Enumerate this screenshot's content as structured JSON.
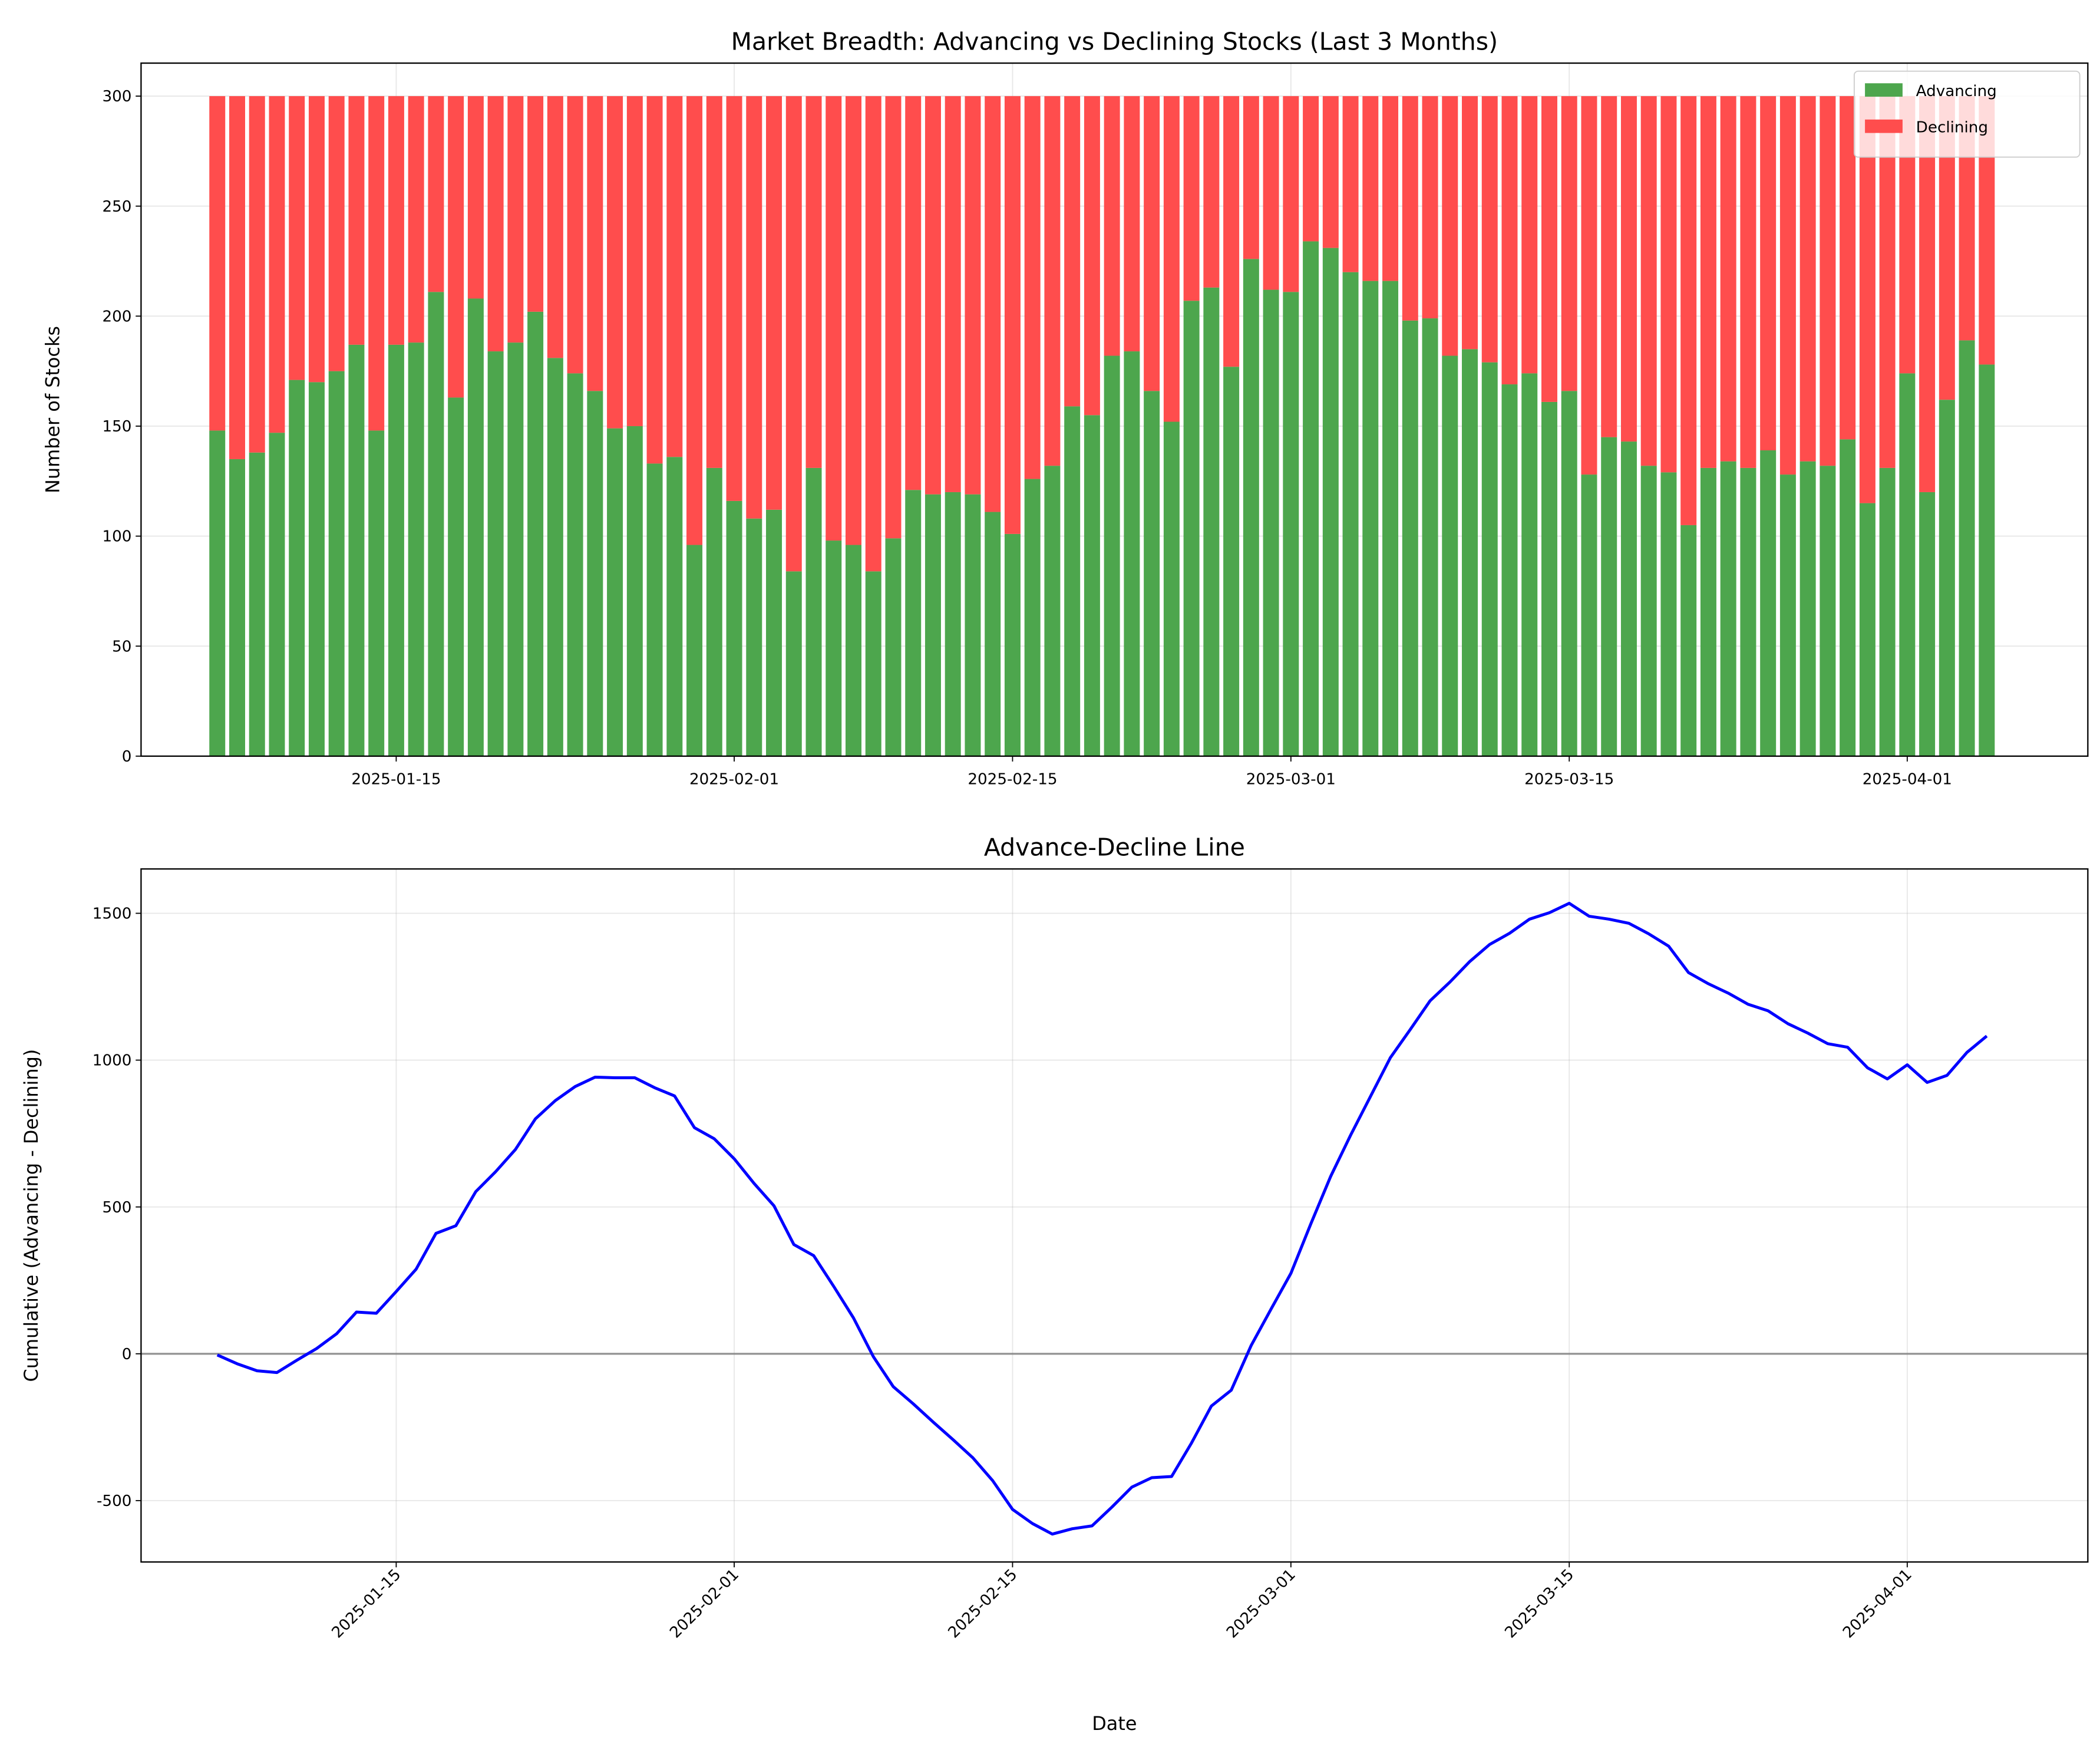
{
  "chart_data": [
    {
      "type": "bar",
      "stacked": true,
      "title": "Market Breadth: Advancing vs Declining Stocks (Last 3 Months)",
      "y_label": "Number of Stocks",
      "x": [
        "2025-01-06",
        "2025-01-07",
        "2025-01-08",
        "2025-01-09",
        "2025-01-10",
        "2025-01-11",
        "2025-01-12",
        "2025-01-13",
        "2025-01-14",
        "2025-01-15",
        "2025-01-16",
        "2025-01-17",
        "2025-01-18",
        "2025-01-19",
        "2025-01-20",
        "2025-01-21",
        "2025-01-22",
        "2025-01-23",
        "2025-01-24",
        "2025-01-25",
        "2025-01-26",
        "2025-01-27",
        "2025-01-28",
        "2025-01-29",
        "2025-01-30",
        "2025-01-31",
        "2025-02-01",
        "2025-02-02",
        "2025-02-03",
        "2025-02-04",
        "2025-02-05",
        "2025-02-06",
        "2025-02-07",
        "2025-02-08",
        "2025-02-09",
        "2025-02-10",
        "2025-02-11",
        "2025-02-12",
        "2025-02-13",
        "2025-02-14",
        "2025-02-15",
        "2025-02-16",
        "2025-02-17",
        "2025-02-18",
        "2025-02-19",
        "2025-02-20",
        "2025-02-21",
        "2025-02-22",
        "2025-02-23",
        "2025-02-24",
        "2025-02-25",
        "2025-02-26",
        "2025-02-27",
        "2025-02-28",
        "2025-03-01",
        "2025-03-02",
        "2025-03-03",
        "2025-03-04",
        "2025-03-05",
        "2025-03-06",
        "2025-03-07",
        "2025-03-08",
        "2025-03-09",
        "2025-03-10",
        "2025-03-11",
        "2025-03-12",
        "2025-03-13",
        "2025-03-14",
        "2025-03-15",
        "2025-03-16",
        "2025-03-17",
        "2025-03-18",
        "2025-03-19",
        "2025-03-20",
        "2025-03-21",
        "2025-03-22",
        "2025-03-23",
        "2025-03-24",
        "2025-03-25",
        "2025-03-26",
        "2025-03-27",
        "2025-03-28",
        "2025-03-29",
        "2025-03-30",
        "2025-03-31",
        "2025-04-01",
        "2025-04-02",
        "2025-04-03",
        "2025-04-04",
        "2025-04-05"
      ],
      "series": [
        {
          "name": "Advancing",
          "color": "#4da64d",
          "values": [
            148,
            135,
            138,
            147,
            171,
            170,
            175,
            187,
            148,
            187,
            188,
            211,
            163,
            208,
            184,
            188,
            202,
            181,
            174,
            166,
            149,
            150,
            133,
            136,
            96,
            131,
            116,
            108,
            112,
            84,
            131,
            98,
            96,
            84,
            99,
            121,
            119,
            120,
            119,
            111,
            101,
            126,
            132,
            159,
            155,
            182,
            184,
            166,
            152,
            207,
            213,
            177,
            226,
            212,
            211,
            234,
            231,
            220,
            216,
            216,
            198,
            199,
            182,
            185,
            179,
            169,
            174,
            161,
            166,
            128,
            145,
            143,
            132,
            129,
            105,
            131,
            134,
            131,
            139,
            128,
            134,
            132,
            144,
            115,
            131,
            174,
            120,
            162,
            189,
            178
          ]
        },
        {
          "name": "Declining",
          "color": "#ff4d4d",
          "values": [
            152,
            165,
            162,
            153,
            129,
            130,
            125,
            113,
            152,
            113,
            112,
            89,
            137,
            92,
            116,
            112,
            98,
            119,
            126,
            134,
            151,
            150,
            167,
            164,
            204,
            169,
            184,
            192,
            188,
            216,
            169,
            202,
            204,
            216,
            201,
            179,
            181,
            180,
            181,
            189,
            199,
            174,
            168,
            141,
            145,
            118,
            116,
            134,
            148,
            93,
            87,
            123,
            74,
            88,
            89,
            66,
            69,
            80,
            84,
            84,
            102,
            101,
            118,
            115,
            121,
            131,
            126,
            139,
            134,
            172,
            155,
            157,
            168,
            171,
            195,
            169,
            166,
            169,
            161,
            172,
            166,
            168,
            156,
            185,
            169,
            126,
            180,
            138,
            111,
            122
          ]
        }
      ],
      "xlim": [
        "2025-01-02T04:00",
        "2025-04-10T02:00"
      ],
      "xticks": [
        "2025-01-15",
        "2025-02-01",
        "2025-02-15",
        "2025-03-01",
        "2025-03-15",
        "2025-04-01"
      ],
      "ylim": [
        0,
        315
      ],
      "yticks": [
        0,
        50,
        100,
        150,
        200,
        250,
        300
      ],
      "grid": true,
      "legend": "upper right"
    },
    {
      "type": "line",
      "title": "Advance-Decline Line",
      "x_label": "Date",
      "y_label": "Cumulative (Advancing - Declining)",
      "x": [
        "2025-01-06",
        "2025-01-07",
        "2025-01-08",
        "2025-01-09",
        "2025-01-10",
        "2025-01-11",
        "2025-01-12",
        "2025-01-13",
        "2025-01-14",
        "2025-01-15",
        "2025-01-16",
        "2025-01-17",
        "2025-01-18",
        "2025-01-19",
        "2025-01-20",
        "2025-01-21",
        "2025-01-22",
        "2025-01-23",
        "2025-01-24",
        "2025-01-25",
        "2025-01-26",
        "2025-01-27",
        "2025-01-28",
        "2025-01-29",
        "2025-01-30",
        "2025-01-31",
        "2025-02-01",
        "2025-02-02",
        "2025-02-03",
        "2025-02-04",
        "2025-02-05",
        "2025-02-06",
        "2025-02-07",
        "2025-02-08",
        "2025-02-09",
        "2025-02-10",
        "2025-02-11",
        "2025-02-12",
        "2025-02-13",
        "2025-02-14",
        "2025-02-15",
        "2025-02-16",
        "2025-02-17",
        "2025-02-18",
        "2025-02-19",
        "2025-02-20",
        "2025-02-21",
        "2025-02-22",
        "2025-02-23",
        "2025-02-24",
        "2025-02-25",
        "2025-02-26",
        "2025-02-27",
        "2025-02-28",
        "2025-03-01",
        "2025-03-02",
        "2025-03-03",
        "2025-03-04",
        "2025-03-05",
        "2025-03-06",
        "2025-03-07",
        "2025-03-08",
        "2025-03-09",
        "2025-03-10",
        "2025-03-11",
        "2025-03-12",
        "2025-03-13",
        "2025-03-14",
        "2025-03-15",
        "2025-03-16",
        "2025-03-17",
        "2025-03-18",
        "2025-03-19",
        "2025-03-20",
        "2025-03-21",
        "2025-03-22",
        "2025-03-23",
        "2025-03-24",
        "2025-03-25",
        "2025-03-26",
        "2025-03-27",
        "2025-03-28",
        "2025-03-29",
        "2025-03-30",
        "2025-03-31",
        "2025-04-01",
        "2025-04-02",
        "2025-04-03",
        "2025-04-04",
        "2025-04-05"
      ],
      "series": [
        {
          "color": "#0000ff",
          "values": [
            -4,
            -34,
            -58,
            -64,
            -22,
            18,
            68,
            142,
            138,
            212,
            288,
            410,
            436,
            552,
            620,
            696,
            800,
            862,
            910,
            942,
            940,
            940,
            906,
            878,
            770,
            732,
            664,
            580,
            504,
            372,
            334,
            230,
            122,
            -10,
            -112,
            -170,
            -232,
            -292,
            -354,
            -432,
            -530,
            -578,
            -614,
            -596,
            -586,
            -522,
            -454,
            -422,
            -418,
            -304,
            -178,
            -124,
            28,
            152,
            274,
            442,
            604,
            744,
            876,
            1008,
            1104,
            1202,
            1266,
            1336,
            1394,
            1432,
            1480,
            1502,
            1534,
            1490,
            1480,
            1466,
            1430,
            1388,
            1298,
            1260,
            1228,
            1190,
            1168,
            1124,
            1092,
            1056,
            1044,
            974,
            936,
            984,
            924,
            948,
            1026,
            1082
          ]
        }
      ],
      "reference_line": 0,
      "xlim": [
        "2025-01-02T04:00",
        "2025-04-10T02:00"
      ],
      "xticks": [
        "2025-01-15",
        "2025-02-01",
        "2025-02-15",
        "2025-03-01",
        "2025-03-15",
        "2025-04-01"
      ],
      "ylim": [
        -709,
        1651
      ],
      "yticks": [
        -500,
        0,
        500,
        1000,
        1500
      ],
      "grid": true
    }
  ]
}
